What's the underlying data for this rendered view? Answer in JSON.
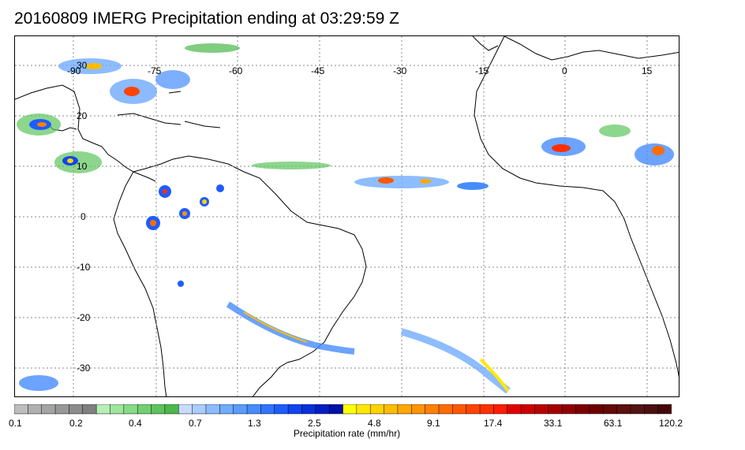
{
  "title": "20160809 IMERG Precipitation ending at 03:29:59 Z",
  "map": {
    "lon_labels": [
      "-90",
      "-75",
      "-60",
      "-45",
      "-30",
      "-15",
      "0",
      "15"
    ],
    "lat_labels": [
      "30",
      "20",
      "10",
      "0",
      "-10",
      "-20",
      "-30"
    ]
  },
  "colorbar": {
    "tick_labels": [
      "0.1",
      "0.2",
      "0.4",
      "0.7",
      "1.3",
      "2.5",
      "4.8",
      "9.1",
      "17.4",
      "33.1",
      "63.1",
      "120.2"
    ],
    "label": "Precipitation rate (mm/hr)",
    "colors": [
      "#bdbdbd",
      "#b0b0b0",
      "#a4a4a4",
      "#989898",
      "#8c8c8c",
      "#808080",
      "#b6f0b6",
      "#9ee69e",
      "#86dc86",
      "#70d070",
      "#5cc45c",
      "#4ab84a",
      "#c8dcff",
      "#aaccff",
      "#8cbcff",
      "#70acff",
      "#5a9cff",
      "#468cff",
      "#3074ff",
      "#1e5cff",
      "#1044f0",
      "#0830dc",
      "#041ec4",
      "#0010a8",
      "#ffff00",
      "#ffe800",
      "#ffd200",
      "#ffbc00",
      "#ffa800",
      "#ff9400",
      "#ff8000",
      "#ff6c00",
      "#ff5800",
      "#ff4400",
      "#ff3000",
      "#ff1c00",
      "#e00000",
      "#cc0000",
      "#b80000",
      "#a40000",
      "#900000",
      "#7c0000",
      "#6c0000",
      "#640808",
      "#5c1010",
      "#541414",
      "#4c1010",
      "#440808"
    ]
  }
}
